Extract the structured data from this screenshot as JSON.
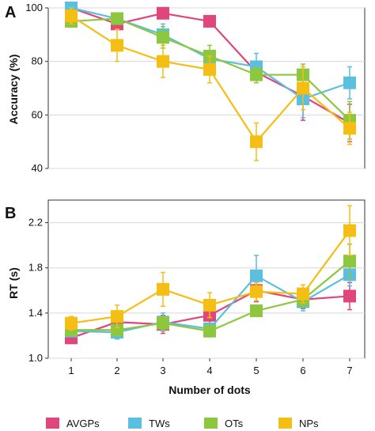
{
  "chart_data": [
    {
      "type": "line",
      "panel_label": "A",
      "ylabel": "Accuracy (%)",
      "xlabel": "",
      "x": [
        1,
        2,
        3,
        4,
        5,
        6,
        7
      ],
      "ylim": [
        40,
        100
      ],
      "yticks": [
        "40",
        "60",
        "80",
        "100"
      ],
      "series": [
        {
          "name": "AVGPs",
          "color": "#e0457b",
          "values": [
            100,
            94,
            98,
            95,
            76,
            67,
            57
          ],
          "errors": [
            0,
            1,
            2,
            2,
            3,
            9,
            7
          ]
        },
        {
          "name": "TWs",
          "color": "#5bbfe0",
          "values": [
            100,
            96,
            90,
            81,
            78,
            66,
            72
          ],
          "errors": [
            0,
            2,
            4,
            3,
            5,
            7,
            6
          ]
        },
        {
          "name": "OTs",
          "color": "#8dc63f",
          "values": [
            95,
            96,
            89,
            82,
            75,
            75,
            58
          ],
          "errors": [
            2,
            2,
            4,
            4,
            3,
            4,
            7
          ]
        },
        {
          "name": "NPs",
          "color": "#f5be14",
          "values": [
            97,
            86,
            80,
            77,
            50,
            70,
            55
          ],
          "errors": [
            3,
            6,
            6,
            5,
            7,
            8,
            6
          ]
        }
      ]
    },
    {
      "type": "line",
      "panel_label": "B",
      "ylabel": "RT (s)",
      "xlabel": "Number of dots",
      "x": [
        1,
        2,
        3,
        4,
        5,
        6,
        7
      ],
      "ylim": [
        1.0,
        2.4
      ],
      "yticks": [
        "1.0",
        "1.4",
        "1.8",
        "2.2"
      ],
      "series": [
        {
          "name": "AVGPs",
          "color": "#e0457b",
          "values": [
            1.18,
            1.32,
            1.3,
            1.38,
            1.6,
            1.52,
            1.55
          ],
          "errors": [
            0.02,
            0.05,
            0.08,
            0.08,
            0.1,
            0.08,
            0.12
          ]
        },
        {
          "name": "TWs",
          "color": "#5bbfe0",
          "values": [
            1.24,
            1.23,
            1.32,
            1.26,
            1.73,
            1.5,
            1.74
          ],
          "errors": [
            0.05,
            0.06,
            0.08,
            0.05,
            0.18,
            0.08,
            0.1
          ]
        },
        {
          "name": "OTs",
          "color": "#8dc63f",
          "values": [
            1.25,
            1.25,
            1.31,
            1.24,
            1.42,
            1.52,
            1.86
          ],
          "errors": [
            0.04,
            0.05,
            0.06,
            0.05,
            0.05,
            0.07,
            0.15
          ]
        },
        {
          "name": "NPs",
          "color": "#f5be14",
          "values": [
            1.31,
            1.37,
            1.61,
            1.47,
            1.59,
            1.57,
            2.13
          ],
          "errors": [
            0.06,
            0.1,
            0.15,
            0.11,
            0.08,
            0.08,
            0.22
          ]
        }
      ]
    }
  ],
  "x_tick_labels": [
    "1",
    "2",
    "3",
    "4",
    "5",
    "6",
    "7"
  ],
  "legend": {
    "placement": "bottom",
    "items": [
      {
        "label": "AVGPs",
        "color": "#e0457b"
      },
      {
        "label": "TWs",
        "color": "#5bbfe0"
      },
      {
        "label": "OTs",
        "color": "#8dc63f"
      },
      {
        "label": "NPs",
        "color": "#f5be14"
      }
    ]
  }
}
